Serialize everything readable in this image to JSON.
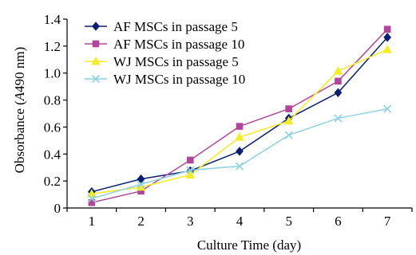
{
  "chart_data": {
    "type": "line",
    "title": "",
    "xlabel": "Culture Time (day)",
    "ylabel_parts": [
      "Obsorbance (",
      "A",
      "490 nm)"
    ],
    "x": [
      1,
      2,
      3,
      4,
      5,
      6,
      7
    ],
    "x_tick_labels": [
      "1",
      "2",
      "3",
      "4",
      "5",
      "6",
      "7"
    ],
    "y_ticks": [
      0,
      0.2,
      0.4,
      0.6,
      0.8,
      1.0,
      1.2,
      1.4
    ],
    "y_tick_labels": [
      "0",
      "0.2",
      "0.4",
      "0.6",
      "0.8",
      "1.0",
      "1.2",
      "1.4"
    ],
    "ylim": [
      0,
      1.4
    ],
    "xlim": [
      0.5,
      7.5
    ],
    "grid": false,
    "legend_position": "top-left",
    "series": [
      {
        "name": "AF MSCs in passage 5",
        "color": "#0b1f6e",
        "marker": "diamond",
        "values": [
          0.12,
          0.215,
          0.275,
          0.42,
          0.665,
          0.855,
          1.265
        ]
      },
      {
        "name": "AF MSCs in passage 10",
        "color": "#b0479a",
        "marker": "square",
        "values": [
          0.04,
          0.125,
          0.355,
          0.605,
          0.735,
          0.94,
          1.325
        ]
      },
      {
        "name": "WJ MSCs in passage 5",
        "color": "#f2ec2a",
        "marker": "triangle",
        "values": [
          0.105,
          0.155,
          0.245,
          0.525,
          0.645,
          1.015,
          1.175
        ]
      },
      {
        "name": "WJ MSCs in passage 10",
        "color": "#8fd0e0",
        "marker": "cross",
        "values": [
          0.07,
          0.175,
          0.28,
          0.31,
          0.54,
          0.665,
          0.735
        ]
      }
    ]
  }
}
